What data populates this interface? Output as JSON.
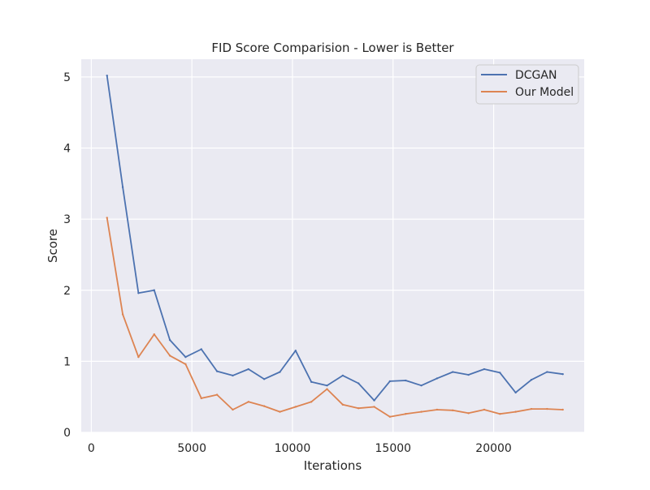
{
  "chart_data": {
    "type": "line",
    "title": "FID Score Comparision - Lower is Better",
    "xlabel": "Iterations",
    "ylabel": "Score",
    "xlim": [
      -500,
      24500
    ],
    "ylim": [
      0,
      5.25
    ],
    "xticks": [
      0,
      5000,
      10000,
      15000,
      20000
    ],
    "xtick_labels": [
      "0",
      "5000",
      "10000",
      "15000",
      "20000"
    ],
    "yticks": [
      0,
      1,
      2,
      3,
      4,
      5
    ],
    "ytick_labels": [
      "0",
      "1",
      "2",
      "3",
      "4",
      "5"
    ],
    "grid": true,
    "legend_position": "top-right",
    "x": [
      781,
      1562,
      2343,
      3125,
      3906,
      4687,
      5468,
      6250,
      7031,
      7812,
      8593,
      9375,
      10156,
      10937,
      11718,
      12500,
      13281,
      14062,
      14843,
      15625,
      16406,
      17187,
      17968,
      18750,
      19531,
      20312,
      21093,
      21875,
      22656,
      23437
    ],
    "series": [
      {
        "name": "DCGAN",
        "color": "#4c72b0",
        "values": [
          5.02,
          3.45,
          1.96,
          2.0,
          1.3,
          1.06,
          1.17,
          0.86,
          0.8,
          0.89,
          0.75,
          0.85,
          1.15,
          0.71,
          0.66,
          0.8,
          0.69,
          0.45,
          0.72,
          0.73,
          0.66,
          0.76,
          0.85,
          0.81,
          0.89,
          0.84,
          0.56,
          0.74,
          0.85,
          0.82
        ]
      },
      {
        "name": "Our Model",
        "color": "#dd8452",
        "values": [
          3.02,
          1.66,
          1.06,
          1.38,
          1.08,
          0.96,
          0.48,
          0.53,
          0.32,
          0.43,
          0.37,
          0.29,
          0.36,
          0.43,
          0.61,
          0.39,
          0.34,
          0.36,
          0.22,
          0.26,
          0.29,
          0.32,
          0.31,
          0.27,
          0.32,
          0.26,
          0.29,
          0.33,
          0.33,
          0.32
        ]
      }
    ],
    "colors": {
      "plot_background": "#eaeaf2",
      "grid": "#ffffff"
    }
  }
}
